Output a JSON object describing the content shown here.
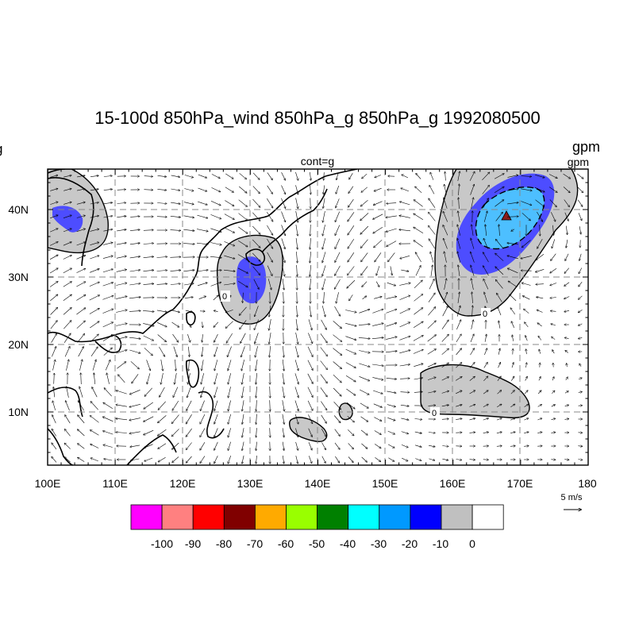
{
  "title": "15-100d 850hPa_wind 850hPa_g 850hPa_g 1992080500",
  "left_unit": "g",
  "right_unit": "gpm",
  "right_unit_sub": "gpm",
  "contour_label": "cont=g",
  "axes": {
    "x_ticks": [
      "100E",
      "110E",
      "120E",
      "130E",
      "140E",
      "150E",
      "160E",
      "170E",
      "180"
    ],
    "y_ticks": [
      "40N",
      "30N",
      "20N",
      "10N"
    ],
    "lon_range": [
      100,
      180
    ],
    "lat_range": [
      2,
      46
    ]
  },
  "reference_vector": {
    "label": "5 m/s"
  },
  "colorbar": {
    "labels": [
      "-100",
      "-90",
      "-80",
      "-70",
      "-60",
      "-50",
      "-40",
      "-30",
      "-20",
      "-10",
      "0"
    ],
    "colors": [
      "#ff00ff",
      "#ff8080",
      "#ff0000",
      "#800000",
      "#ffaa00",
      "#99ff00",
      "#008000",
      "#00ffff",
      "#0099ff",
      "#0000ff",
      "#c0c0c0",
      "#ffffff"
    ]
  },
  "contour_labels": [
    "0",
    "0",
    "0"
  ],
  "fill_colors": {
    "grey": "#c8c8c8",
    "blue": "#4d4dff",
    "light_blue": "#4dbfff",
    "marker": "#8b1a1a"
  }
}
